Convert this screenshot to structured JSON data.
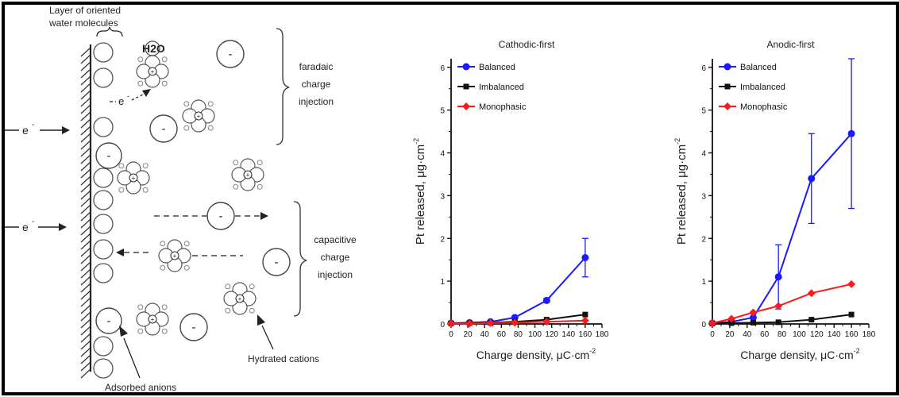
{
  "diagram": {
    "labels": {
      "layer": [
        "Layer of oriented",
        "water molecules"
      ],
      "water": "H2O",
      "electron": "e",
      "faradaic": [
        "faradaic",
        "charge",
        "injection"
      ],
      "capacitive": [
        "capacitive",
        "charge",
        "injection"
      ],
      "adsorbed": "Adsorbed anions",
      "hydrated": "Hydrated cations"
    },
    "anion_sign": "-",
    "cation_sign": "+"
  },
  "chart_data": [
    {
      "type": "line",
      "title": "Cathodic-first",
      "xlabel": "Charge density, μC·cm",
      "xlabel_sup": "-2",
      "ylabel": "Pt released,  μg·cm",
      "ylabel_sup": "-2",
      "xlim": [
        0,
        180
      ],
      "ylim": [
        0,
        6.2
      ],
      "xticks": [
        0,
        20,
        40,
        60,
        80,
        100,
        120,
        140,
        160,
        180
      ],
      "yticks": [
        0,
        1,
        2,
        3,
        4,
        5,
        6
      ],
      "x": [
        0,
        22,
        47,
        76,
        114,
        160
      ],
      "legend_position": "top-left",
      "series": [
        {
          "name": "Balanced",
          "color": "#1a1aff",
          "marker": "circle",
          "values": [
            0.02,
            0.03,
            0.05,
            0.15,
            0.55,
            1.55
          ],
          "errors": [
            0,
            0,
            0,
            0.03,
            0.05,
            0.45
          ]
        },
        {
          "name": "Imbalanced",
          "color": "#111111",
          "marker": "square",
          "values": [
            0.01,
            0.02,
            0.03,
            0.05,
            0.1,
            0.22
          ],
          "errors": [
            0,
            0,
            0,
            0,
            0,
            0
          ]
        },
        {
          "name": "Monophasic",
          "color": "#ff1a1a",
          "marker": "diamond",
          "values": [
            0.01,
            0.01,
            0.02,
            0.03,
            0.05,
            0.08
          ],
          "errors": [
            0,
            0,
            0,
            0,
            0,
            0
          ]
        }
      ]
    },
    {
      "type": "line",
      "title": "Anodic-first",
      "xlabel": "Charge density, μC·cm",
      "xlabel_sup": "-2",
      "ylabel": "Pt released,  μg·cm",
      "ylabel_sup": "-2",
      "xlim": [
        0,
        180
      ],
      "ylim": [
        0,
        6.2
      ],
      "xticks": [
        0,
        20,
        40,
        60,
        80,
        100,
        120,
        140,
        160,
        180
      ],
      "yticks": [
        0,
        1,
        2,
        3,
        4,
        5,
        6
      ],
      "x": [
        0,
        22,
        47,
        76,
        114,
        160
      ],
      "legend_position": "top-left",
      "series": [
        {
          "name": "Balanced",
          "color": "#1a1aff",
          "marker": "circle",
          "values": [
            0.02,
            0.05,
            0.15,
            1.1,
            3.4,
            4.45
          ],
          "errors": [
            0,
            0,
            0,
            0.75,
            1.05,
            1.75
          ]
        },
        {
          "name": "Imbalanced",
          "color": "#111111",
          "marker": "square",
          "values": [
            0.01,
            0.02,
            0.03,
            0.04,
            0.1,
            0.22
          ],
          "errors": [
            0,
            0,
            0,
            0,
            0,
            0
          ]
        },
        {
          "name": "Monophasic",
          "color": "#ff1a1a",
          "marker": "diamond",
          "values": [
            0.02,
            0.12,
            0.27,
            0.42,
            0.72,
            0.93
          ],
          "errors": [
            0,
            0,
            0,
            0,
            0,
            0
          ]
        }
      ]
    }
  ]
}
